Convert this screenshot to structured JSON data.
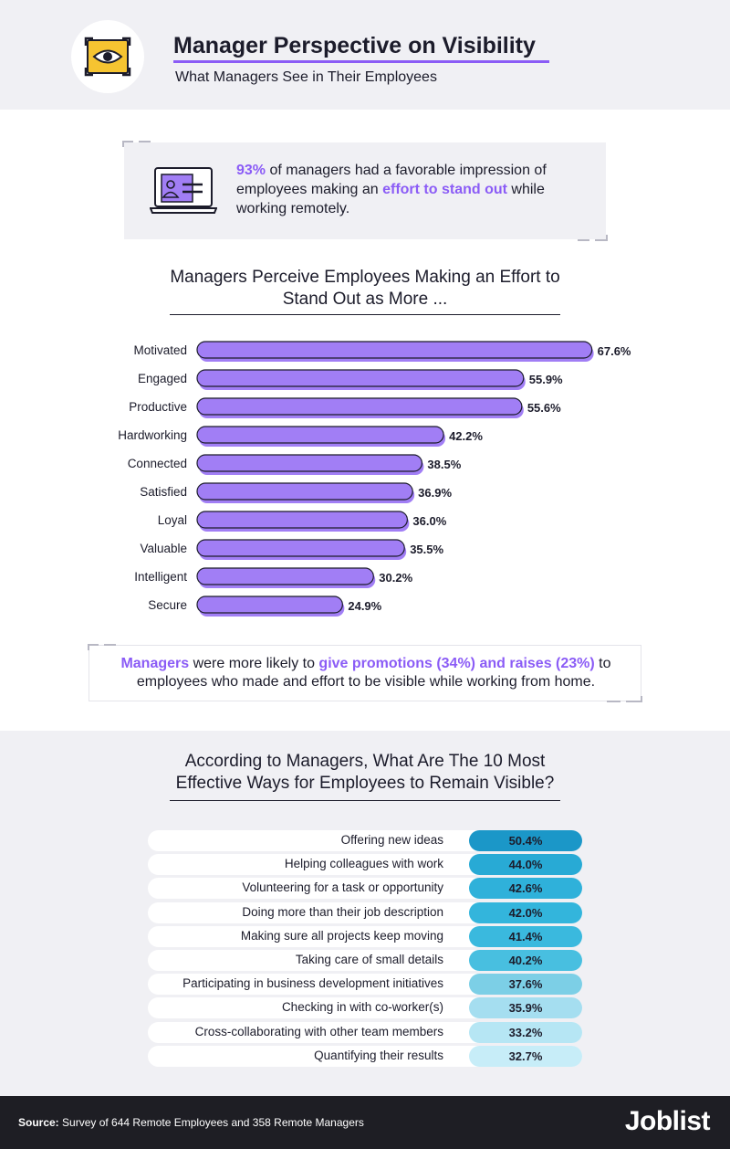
{
  "header": {
    "title": "Manager Perspective on Visibility",
    "subtitle": "What Managers See in Their Employees",
    "icon": "eye-target-icon"
  },
  "stat": {
    "pct": "93%",
    "text_1": " of managers had a favorable impression of employees making an ",
    "highlight": "effort to stand out",
    "text_2": " while working remotely.",
    "icon": "employee-laptop-icon"
  },
  "note": {
    "lead": "Managers",
    "text_1": " were more likely to ",
    "highlight": "give promotions (34%) and raises (23%)",
    "text_2": " to employees who made and effort to be visible while working from home."
  },
  "chart_data": [
    {
      "type": "bar",
      "orientation": "horizontal",
      "title": "Managers Perceive Employees Making an Effort to Stand Out as More ...",
      "categories": [
        "Motivated",
        "Engaged",
        "Productive",
        "Hardworking",
        "Connected",
        "Satisfied",
        "Loyal",
        "Valuable",
        "Intelligent",
        "Secure"
      ],
      "values": [
        67.6,
        55.9,
        55.6,
        42.2,
        38.5,
        36.9,
        36.0,
        35.5,
        30.2,
        24.9
      ],
      "value_labels": [
        "67.6%",
        "55.9%",
        "55.6%",
        "42.2%",
        "38.5%",
        "36.9%",
        "36.0%",
        "35.5%",
        "30.2%",
        "24.9%"
      ],
      "unit": "%",
      "color": "#a17ef5"
    },
    {
      "type": "table",
      "title": "According to Managers, What Are The 10 Most Effective Ways for Employees to Remain Visible?",
      "categories": [
        "Offering new ideas",
        "Helping colleagues with work",
        "Volunteering for a task or opportunity",
        "Doing more than their job description",
        "Making sure all projects keep moving",
        "Taking care of small details",
        "Participating in business development initiatives",
        "Checking in with co-worker(s)",
        "Cross-collaborating with other team members",
        "Quantifying their results"
      ],
      "values": [
        50.4,
        44.0,
        42.6,
        42.0,
        41.4,
        40.2,
        37.6,
        35.9,
        33.2,
        32.7
      ],
      "value_labels": [
        "50.4%",
        "44.0%",
        "42.6%",
        "42.0%",
        "41.4%",
        "40.2%",
        "37.6%",
        "35.9%",
        "33.2%",
        "32.7%"
      ],
      "colors": [
        "#1b97c8",
        "#28aad5",
        "#2fb1da",
        "#33b5dc",
        "#3ab9de",
        "#48bfe0",
        "#7ccfe6",
        "#a5def0",
        "#b6e6f4",
        "#c7edf8"
      ]
    }
  ],
  "footer": {
    "source_label": "Source:",
    "source_text": " Survey of 644 Remote Employees and 358 Remote Managers",
    "brand": "Joblist"
  }
}
